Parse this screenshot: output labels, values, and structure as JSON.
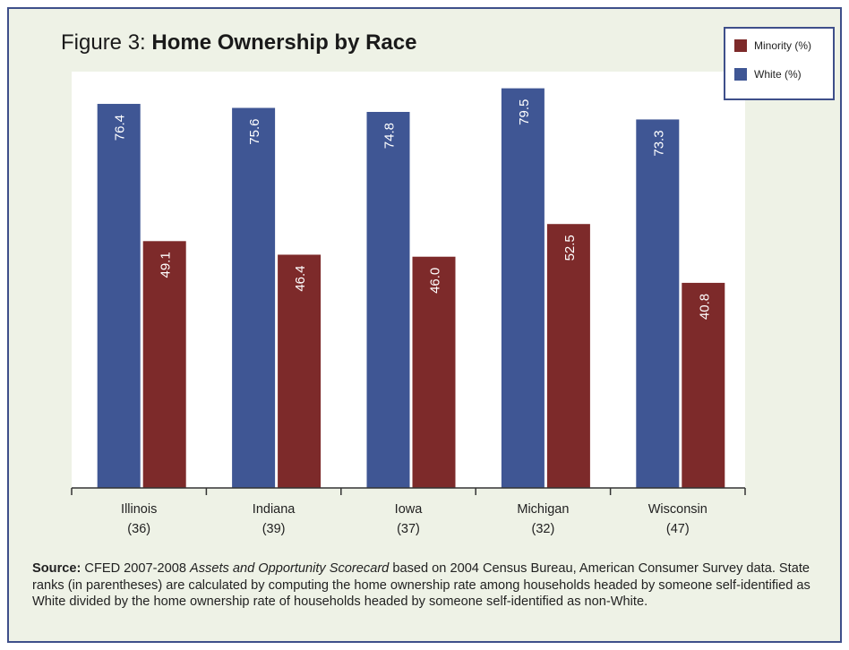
{
  "header": {
    "title_prefix": "Figure 3: ",
    "title_main": "Home Ownership by Race"
  },
  "legend": {
    "items": [
      {
        "label": "Minority (%)",
        "color": "#7d2a2a"
      },
      {
        "label": "White (%)",
        "color": "#3f5694"
      }
    ]
  },
  "chart_data": {
    "type": "bar",
    "title": "Figure 3: Home Ownership by Race",
    "categories": [
      "Illinois",
      "Indiana",
      "Iowa",
      "Michigan",
      "Wisconsin"
    ],
    "category_ranks": [
      "(36)",
      "(39)",
      "(37)",
      "(32)",
      "(47)"
    ],
    "series": [
      {
        "name": "White (%)",
        "color": "#3f5694",
        "values": [
          76.4,
          75.6,
          74.8,
          79.5,
          73.3
        ]
      },
      {
        "name": "Minority (%)",
        "color": "#7d2a2a",
        "values": [
          49.1,
          46.4,
          46.0,
          52.5,
          40.8
        ]
      }
    ],
    "value_labels": {
      "White (%)": [
        "76.4",
        "75.6",
        "74.8",
        "79.5",
        "73.3"
      ],
      "Minority (%)": [
        "49.1",
        "46.4",
        "46.0",
        "52.5",
        "40.8"
      ]
    },
    "ylim": [
      0,
      80
    ],
    "xlabel": "",
    "ylabel": "",
    "grid": false,
    "legend_position": "top-right"
  },
  "source": {
    "label": "Source:",
    "text_before": " CFED 2007-2008 ",
    "italic": "Assets and Opportunity Scorecard",
    "text_after": " based on 2004 Census Bureau, American Consumer Survey data. State ranks (in parentheses) are calculated by computing the home ownership rate among households headed by someone self-identified as White divided by the home ownership rate of households headed by someone self-identified as non-White."
  }
}
